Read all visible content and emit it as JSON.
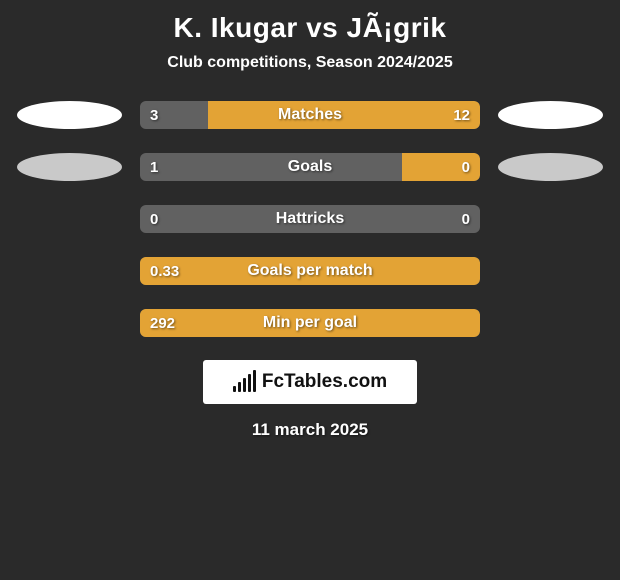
{
  "title": "K. Ikugar vs JÃ¡grik",
  "subtitle": "Club competitions, Season 2024/2025",
  "logo_text": "FcTables.com",
  "date": "11 march 2025",
  "colors": {
    "background": "#2a2a2a",
    "bar_neutral": "#616161",
    "bar_left_accent": "#e3a335",
    "bar_right_accent": "#e3a335",
    "oval_white": "#ffffff",
    "oval_gray": "#c9c9c9",
    "text": "#ffffff"
  },
  "stats": [
    {
      "label": "Matches",
      "left_value": "3",
      "right_value": "12",
      "left_pct": 20,
      "right_pct": 80,
      "left_color": "#616161",
      "right_color": "#e3a335",
      "show_ovals": true,
      "oval_left_color": "#ffffff",
      "oval_right_color": "#ffffff"
    },
    {
      "label": "Goals",
      "left_value": "1",
      "right_value": "0",
      "left_pct": 77,
      "right_pct": 23,
      "left_color": "#616161",
      "right_color": "#e3a335",
      "show_ovals": true,
      "oval_left_color": "#c9c9c9",
      "oval_right_color": "#c9c9c9"
    },
    {
      "label": "Hattricks",
      "left_value": "0",
      "right_value": "0",
      "left_pct": 100,
      "right_pct": 0,
      "left_color": "#616161",
      "right_color": "#e3a335",
      "show_ovals": false
    },
    {
      "label": "Goals per match",
      "left_value": "0.33",
      "right_value": "",
      "left_pct": 0,
      "right_pct": 100,
      "left_color": "#616161",
      "right_color": "#e3a335",
      "show_ovals": false
    },
    {
      "label": "Min per goal",
      "left_value": "292",
      "right_value": "",
      "left_pct": 0,
      "right_pct": 100,
      "left_color": "#616161",
      "right_color": "#e3a335",
      "show_ovals": false
    }
  ]
}
